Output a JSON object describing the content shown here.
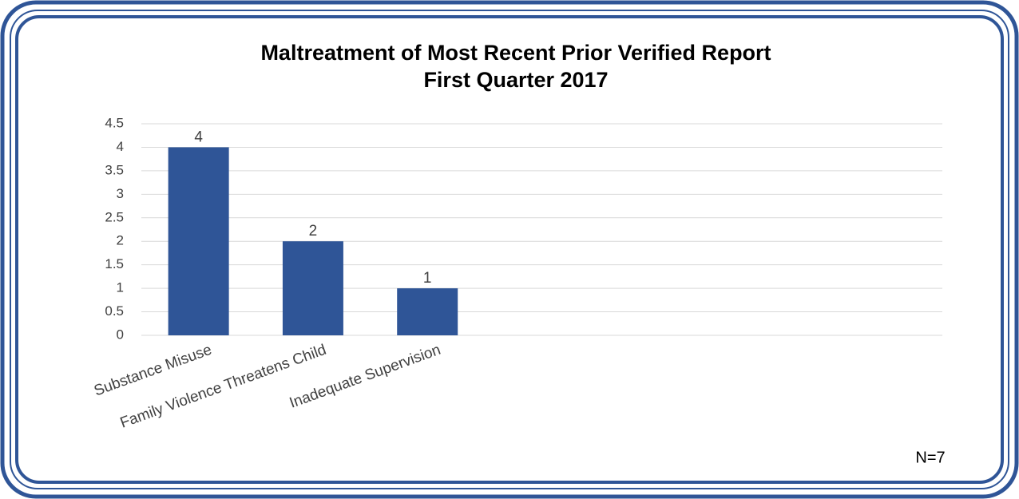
{
  "chart_data": {
    "type": "bar",
    "title": [
      "Maltreatment of Most Recent Prior Verified Report",
      "First Quarter 2017"
    ],
    "categories": [
      "Substance Misuse",
      "Family Violence Threatens Child",
      "Inadequate Supervision",
      null,
      null,
      null,
      null
    ],
    "values": [
      4,
      2,
      1,
      null,
      null,
      null,
      null
    ],
    "color": "#2f5597",
    "ylim": [
      0,
      4.5
    ],
    "yticks": [
      0,
      0.5,
      1,
      1.5,
      2,
      2.5,
      3,
      3.5,
      4,
      4.5
    ],
    "grid": true,
    "annotation": "N=7"
  }
}
